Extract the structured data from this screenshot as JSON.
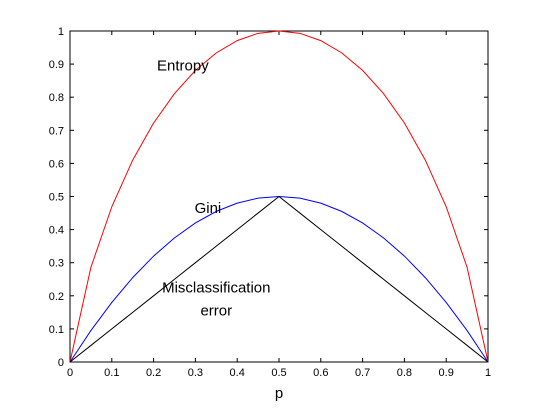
{
  "chart_data": {
    "type": "line",
    "title": "",
    "xlabel": "p",
    "ylabel": "",
    "xlim": [
      0,
      1
    ],
    "ylim": [
      0,
      1
    ],
    "grid": false,
    "legend": "none",
    "x_ticks": [
      "0",
      "0.1",
      "0.2",
      "0.3",
      "0.4",
      "0.5",
      "0.6",
      "0.7",
      "0.8",
      "0.9",
      "1"
    ],
    "y_ticks": [
      "0",
      "0.1",
      "0.2",
      "0.3",
      "0.4",
      "0.5",
      "0.6",
      "0.7",
      "0.8",
      "0.9",
      "1"
    ],
    "x": [
      0,
      0.05,
      0.1,
      0.15,
      0.2,
      0.25,
      0.3,
      0.35,
      0.4,
      0.45,
      0.5,
      0.55,
      0.6,
      0.65,
      0.7,
      0.75,
      0.8,
      0.85,
      0.9,
      0.95,
      1
    ],
    "series": [
      {
        "color": "#ff0000",
        "values": [
          0,
          0.286,
          0.469,
          0.61,
          0.722,
          0.811,
          0.881,
          0.934,
          0.971,
          0.993,
          1,
          0.993,
          0.971,
          0.934,
          0.881,
          0.811,
          0.722,
          0.61,
          0.469,
          0.286,
          0
        ]
      },
      {
        "color": "#0000ff",
        "values": [
          0,
          0.095,
          0.18,
          0.255,
          0.32,
          0.375,
          0.42,
          0.455,
          0.48,
          0.495,
          0.5,
          0.495,
          0.48,
          0.455,
          0.42,
          0.375,
          0.32,
          0.255,
          0.18,
          0.095,
          0
        ]
      },
      {
        "color": "#000000",
        "values": [
          0,
          0.05,
          0.1,
          0.15,
          0.2,
          0.25,
          0.3,
          0.35,
          0.4,
          0.45,
          0.5,
          0.45,
          0.4,
          0.35,
          0.3,
          0.25,
          0.2,
          0.15,
          0.1,
          0.05,
          0
        ]
      }
    ],
    "annotations": [
      {
        "text": "Entropy",
        "x": 0.27,
        "y": 0.88
      },
      {
        "text": "Gini",
        "x": 0.33,
        "y": 0.45
      },
      {
        "text": "Misclassification",
        "x": 0.35,
        "y": 0.21
      },
      {
        "text": "error",
        "x": 0.35,
        "y": 0.14
      }
    ]
  }
}
